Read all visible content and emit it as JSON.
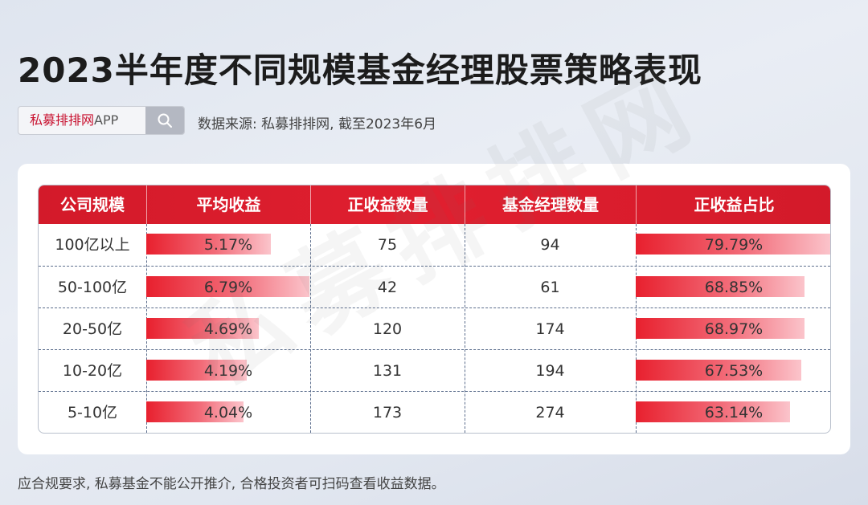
{
  "title": "2023半年度不同规模基金经理股票策略表现",
  "search": {
    "brand": "私募排排网",
    "suffix": "APP",
    "icon": "search-icon"
  },
  "source": "数据来源: 私募排排网, 截至2023年6月",
  "watermark": "私募排排网",
  "footer": "应合规要求, 私募基金不能公开推介, 合格投资者可扫码查看收益数据。",
  "colors": {
    "header": "#d31a2a",
    "bar_start": "#e8202e",
    "bar_end": "#fbc4cb"
  },
  "chart_data": {
    "type": "table",
    "columns": [
      "公司规模",
      "平均收益",
      "正收益数量",
      "基金经理数量",
      "正收益占比"
    ],
    "rows": [
      {
        "scale": "100亿以上",
        "avg_return": 5.17,
        "avg_return_label": "5.17%",
        "positive_count": "75",
        "manager_count": "94",
        "positive_ratio": 79.79,
        "positive_ratio_label": "79.79%"
      },
      {
        "scale": "50-100亿",
        "avg_return": 6.79,
        "avg_return_label": "6.79%",
        "positive_count": "42",
        "manager_count": "61",
        "positive_ratio": 68.85,
        "positive_ratio_label": "68.85%"
      },
      {
        "scale": "20-50亿",
        "avg_return": 4.69,
        "avg_return_label": "4.69%",
        "positive_count": "120",
        "manager_count": "174",
        "positive_ratio": 68.97,
        "positive_ratio_label": "68.97%"
      },
      {
        "scale": "10-20亿",
        "avg_return": 4.19,
        "avg_return_label": "4.19%",
        "positive_count": "131",
        "manager_count": "194",
        "positive_ratio": 67.53,
        "positive_ratio_label": "67.53%"
      },
      {
        "scale": "5-10亿",
        "avg_return": 4.04,
        "avg_return_label": "4.04%",
        "positive_count": "173",
        "manager_count": "274",
        "positive_ratio": 63.14,
        "positive_ratio_label": "63.14%"
      }
    ]
  }
}
